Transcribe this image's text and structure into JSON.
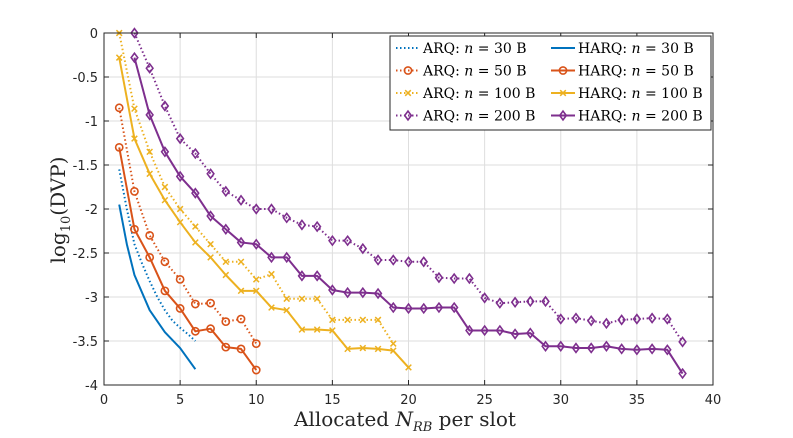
{
  "chart_data": {
    "type": "line",
    "title": "",
    "xlabel": "Allocated N_RB per slot",
    "xlabel_main": "Allocated ",
    "xlabel_var": "N",
    "xlabel_sub": "RB",
    "xlabel_tail": " per slot",
    "ylabel": "log10(DVP)",
    "ylabel_main": "log",
    "ylabel_sub": "10",
    "ylabel_tail": "(DVP)",
    "xlim": [
      0,
      40
    ],
    "ylim": [
      -4,
      0
    ],
    "xticks": [
      0,
      5,
      10,
      15,
      20,
      25,
      30,
      35,
      40
    ],
    "yticks": [
      0,
      -0.5,
      -1,
      -1.5,
      -2,
      -2.5,
      -3,
      -3.5,
      -4
    ],
    "xtick_labels": [
      "0",
      "5",
      "10",
      "15",
      "20",
      "25",
      "30",
      "35",
      "40"
    ],
    "ytick_labels": [
      "0",
      "-0.5",
      "-1",
      "-1.5",
      "-2",
      "-2.5",
      "-3",
      "-3.5",
      "-4"
    ],
    "grid": true,
    "legend_position": "top-right",
    "series": [
      {
        "name": "ARQ: n = 30 B",
        "legend_scheme": "ARQ",
        "legend_size": "30 B",
        "style": "dotted",
        "marker": "none",
        "color": "#0072BD",
        "points": [
          [
            1,
            -1.55
          ],
          [
            1.5,
            -2.0
          ],
          [
            2,
            -2.4
          ],
          [
            2.5,
            -2.62
          ],
          [
            3,
            -2.82
          ],
          [
            3.5,
            -3.0
          ],
          [
            4,
            -3.15
          ],
          [
            4.5,
            -3.27
          ],
          [
            5,
            -3.35
          ],
          [
            5.5,
            -3.42
          ],
          [
            6,
            -3.5
          ]
        ]
      },
      {
        "name": "HARQ: n = 30 B",
        "legend_scheme": "HARQ",
        "legend_size": "30 B",
        "style": "solid",
        "marker": "none",
        "color": "#0072BD",
        "points": [
          [
            1,
            -1.95
          ],
          [
            1.5,
            -2.4
          ],
          [
            2,
            -2.75
          ],
          [
            3,
            -3.15
          ],
          [
            4,
            -3.4
          ],
          [
            5,
            -3.58
          ],
          [
            6,
            -3.82
          ]
        ]
      },
      {
        "name": "ARQ: n = 50 B",
        "legend_scheme": "ARQ",
        "legend_size": "50 B",
        "style": "dotted",
        "marker": "circle",
        "color": "#D95319",
        "points": [
          [
            1,
            -0.85
          ],
          [
            2,
            -1.8
          ],
          [
            3,
            -2.3
          ],
          [
            4,
            -2.6
          ],
          [
            5,
            -2.8
          ],
          [
            6,
            -3.08
          ],
          [
            7,
            -3.07
          ],
          [
            8,
            -3.28
          ],
          [
            9,
            -3.25
          ],
          [
            10,
            -3.53
          ]
        ]
      },
      {
        "name": "HARQ: n = 50 B",
        "legend_scheme": "HARQ",
        "legend_size": "50 B",
        "style": "solid",
        "marker": "circle",
        "color": "#D95319",
        "points": [
          [
            1,
            -1.3
          ],
          [
            2,
            -2.23
          ],
          [
            3,
            -2.55
          ],
          [
            4,
            -2.93
          ],
          [
            5,
            -3.13
          ],
          [
            6,
            -3.39
          ],
          [
            7,
            -3.36
          ],
          [
            8,
            -3.57
          ],
          [
            9,
            -3.59
          ],
          [
            10,
            -3.83
          ]
        ]
      },
      {
        "name": "ARQ: n = 100 B",
        "legend_scheme": "ARQ",
        "legend_size": "100 B",
        "style": "dotted",
        "marker": "x",
        "color": "#EDB120",
        "points": [
          [
            1,
            0
          ],
          [
            2,
            -0.86
          ],
          [
            3,
            -1.35
          ],
          [
            4,
            -1.75
          ],
          [
            5,
            -2.0
          ],
          [
            6,
            -2.2
          ],
          [
            7,
            -2.4
          ],
          [
            8,
            -2.6
          ],
          [
            9,
            -2.6
          ],
          [
            10,
            -2.8
          ],
          [
            11,
            -2.74
          ],
          [
            12,
            -3.02
          ],
          [
            13,
            -3.02
          ],
          [
            14,
            -3.02
          ],
          [
            15,
            -3.26
          ],
          [
            16,
            -3.26
          ],
          [
            17,
            -3.26
          ],
          [
            18,
            -3.26
          ],
          [
            19,
            -3.53
          ]
        ]
      },
      {
        "name": "HARQ: n = 100 B",
        "legend_scheme": "HARQ",
        "legend_size": "100 B",
        "style": "solid",
        "marker": "x",
        "color": "#EDB120",
        "points": [
          [
            1,
            -0.28
          ],
          [
            2,
            -1.2
          ],
          [
            3,
            -1.6
          ],
          [
            4,
            -1.9
          ],
          [
            5,
            -2.15
          ],
          [
            6,
            -2.38
          ],
          [
            7,
            -2.55
          ],
          [
            8,
            -2.75
          ],
          [
            9,
            -2.93
          ],
          [
            10,
            -2.93
          ],
          [
            11,
            -3.12
          ],
          [
            12,
            -3.15
          ],
          [
            13,
            -3.37
          ],
          [
            14,
            -3.37
          ],
          [
            15,
            -3.38
          ],
          [
            16,
            -3.59
          ],
          [
            17,
            -3.58
          ],
          [
            18,
            -3.59
          ],
          [
            19,
            -3.61
          ],
          [
            20,
            -3.8
          ]
        ]
      },
      {
        "name": "ARQ: n = 200 B",
        "legend_scheme": "ARQ",
        "legend_size": "200 B",
        "style": "dotted",
        "marker": "diamond",
        "color": "#7E2F8E",
        "points": [
          [
            2,
            0
          ],
          [
            3,
            -0.4
          ],
          [
            4,
            -0.83
          ],
          [
            5,
            -1.2
          ],
          [
            6,
            -1.37
          ],
          [
            7,
            -1.6
          ],
          [
            8,
            -1.8
          ],
          [
            9,
            -1.9
          ],
          [
            10,
            -2.0
          ],
          [
            11,
            -2.0
          ],
          [
            12,
            -2.1
          ],
          [
            13,
            -2.18
          ],
          [
            14,
            -2.2
          ],
          [
            15,
            -2.36
          ],
          [
            16,
            -2.36
          ],
          [
            17,
            -2.45
          ],
          [
            18,
            -2.58
          ],
          [
            19,
            -2.58
          ],
          [
            20,
            -2.6
          ],
          [
            21,
            -2.6
          ],
          [
            22,
            -2.78
          ],
          [
            23,
            -2.79
          ],
          [
            24,
            -2.79
          ],
          [
            25,
            -3.01
          ],
          [
            26,
            -3.07
          ],
          [
            27,
            -3.06
          ],
          [
            28,
            -3.05
          ],
          [
            29,
            -3.05
          ],
          [
            30,
            -3.25
          ],
          [
            31,
            -3.24
          ],
          [
            32,
            -3.27
          ],
          [
            33,
            -3.3
          ],
          [
            34,
            -3.26
          ],
          [
            35,
            -3.25
          ],
          [
            36,
            -3.24
          ],
          [
            37,
            -3.25
          ],
          [
            38,
            -3.51
          ]
        ]
      },
      {
        "name": "HARQ: n = 200 B",
        "legend_scheme": "HARQ",
        "legend_size": "200 B",
        "style": "solid",
        "marker": "diamond",
        "color": "#7E2F8E",
        "points": [
          [
            2,
            -0.28
          ],
          [
            3,
            -0.93
          ],
          [
            4,
            -1.35
          ],
          [
            5,
            -1.63
          ],
          [
            6,
            -1.82
          ],
          [
            7,
            -2.08
          ],
          [
            8,
            -2.23
          ],
          [
            9,
            -2.38
          ],
          [
            10,
            -2.4
          ],
          [
            11,
            -2.55
          ],
          [
            12,
            -2.55
          ],
          [
            13,
            -2.76
          ],
          [
            14,
            -2.76
          ],
          [
            15,
            -2.92
          ],
          [
            16,
            -2.95
          ],
          [
            17,
            -2.95
          ],
          [
            18,
            -2.96
          ],
          [
            19,
            -3.12
          ],
          [
            20,
            -3.13
          ],
          [
            21,
            -3.13
          ],
          [
            22,
            -3.12
          ],
          [
            23,
            -3.12
          ],
          [
            24,
            -3.38
          ],
          [
            25,
            -3.38
          ],
          [
            26,
            -3.38
          ],
          [
            27,
            -3.42
          ],
          [
            28,
            -3.41
          ],
          [
            29,
            -3.56
          ],
          [
            30,
            -3.56
          ],
          [
            31,
            -3.58
          ],
          [
            32,
            -3.58
          ],
          [
            33,
            -3.56
          ],
          [
            34,
            -3.59
          ],
          [
            35,
            -3.6
          ],
          [
            36,
            -3.59
          ],
          [
            37,
            -3.6
          ],
          [
            38,
            -3.87
          ]
        ]
      }
    ]
  }
}
